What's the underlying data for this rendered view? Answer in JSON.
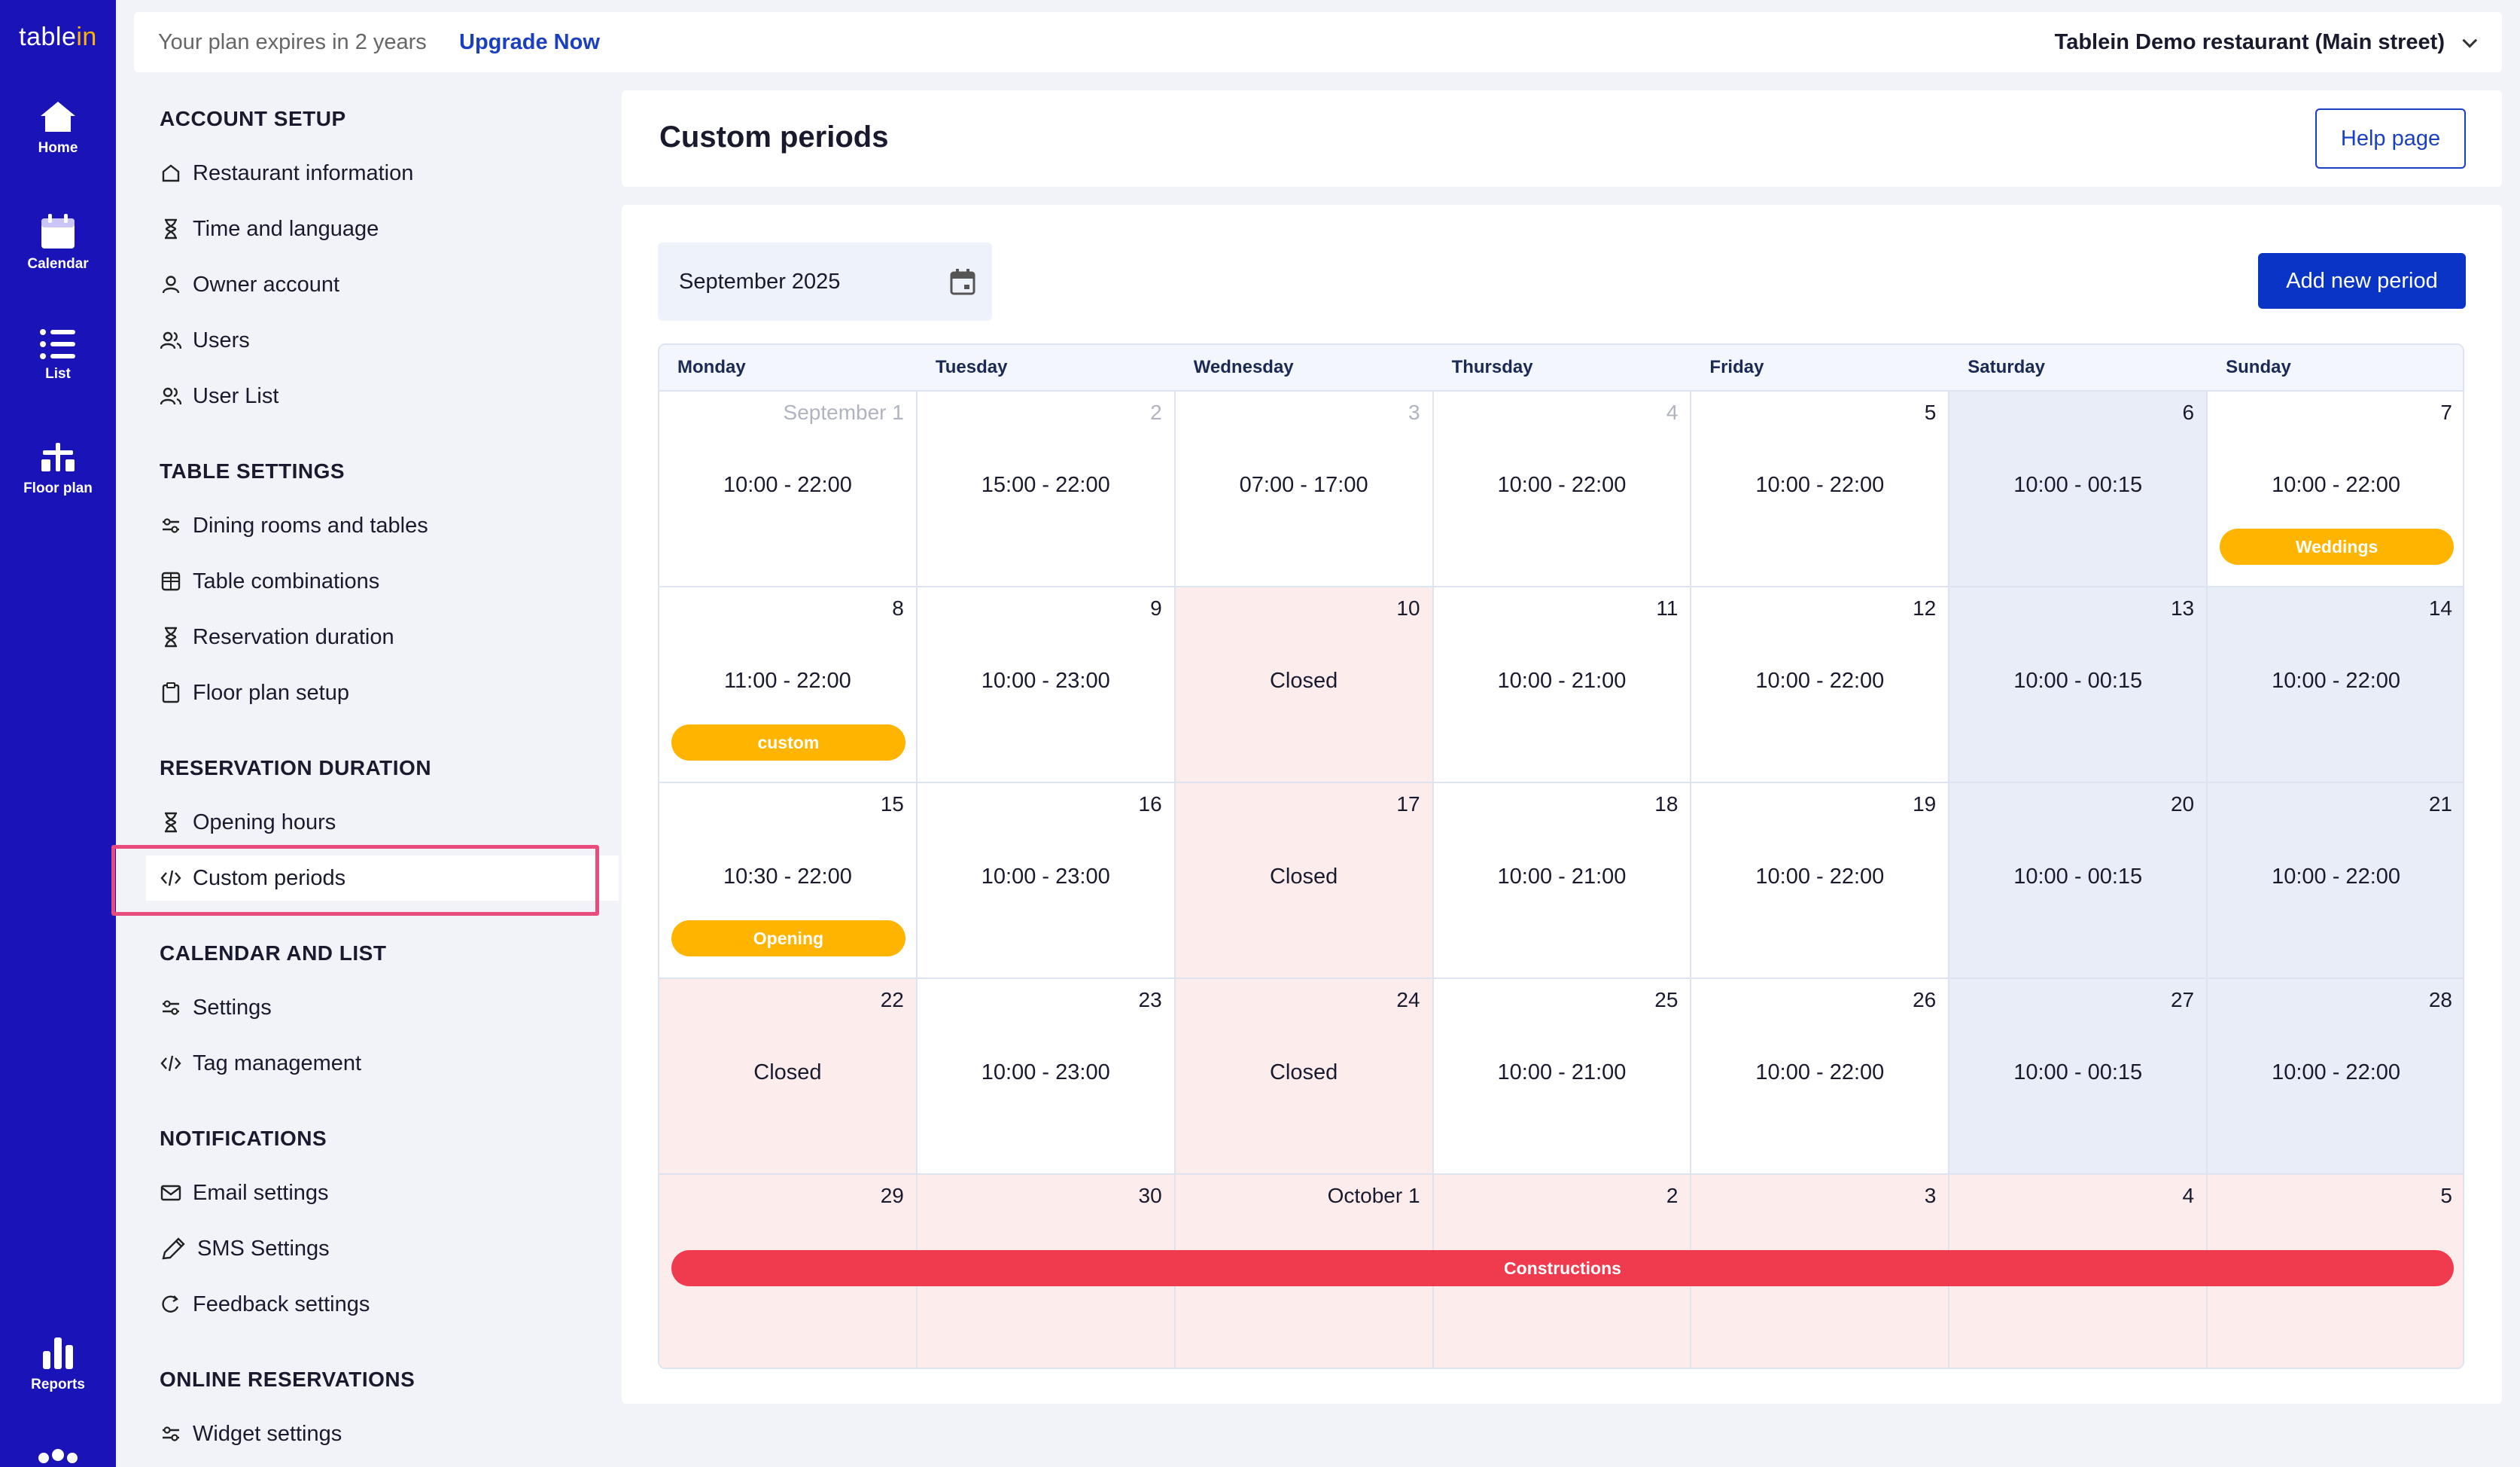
{
  "brand": {
    "logo_main": "table",
    "logo_accent": "in"
  },
  "rail": {
    "items": [
      {
        "label": "Home",
        "icon": "home-icon"
      },
      {
        "label": "Calendar",
        "icon": "calendar-icon"
      },
      {
        "label": "List",
        "icon": "list-icon"
      },
      {
        "label": "Floor plan",
        "icon": "floor-plan-icon"
      },
      {
        "label": "Reports",
        "icon": "bar-chart-icon"
      }
    ]
  },
  "topbar": {
    "plan_text": "Your plan expires in 2 years",
    "upgrade_label": "Upgrade Now",
    "restaurant": "Tablein Demo restaurant (Main street)"
  },
  "settings": {
    "sections": [
      {
        "title": "ACCOUNT SETUP",
        "items": [
          "Restaurant information",
          "Time and language",
          "Owner account",
          "Users",
          "User List"
        ]
      },
      {
        "title": "TABLE SETTINGS",
        "items": [
          "Dining rooms and tables",
          "Table combinations",
          "Reservation duration",
          "Floor plan setup"
        ]
      },
      {
        "title": "RESERVATION DURATION",
        "items": [
          "Opening hours",
          "Custom periods"
        ]
      },
      {
        "title": "CALENDAR AND LIST",
        "items": [
          "Settings",
          "Tag management"
        ]
      },
      {
        "title": "NOTIFICATIONS",
        "items": [
          "Email settings",
          "SMS Settings",
          "Feedback settings"
        ]
      },
      {
        "title": "ONLINE RESERVATIONS",
        "items": [
          "Widget settings"
        ]
      }
    ],
    "active_item": "Custom periods"
  },
  "page": {
    "title": "Custom periods",
    "help_label": "Help page",
    "month_label": "September 2025",
    "add_label": "Add new period"
  },
  "calendar": {
    "weekdays": [
      "Monday",
      "Tuesday",
      "Wednesday",
      "Thursday",
      "Friday",
      "Saturday",
      "Sunday"
    ],
    "weeks": [
      [
        {
          "day": "September 1",
          "muted": true,
          "hours": "10:00 - 22:00",
          "state": "normal"
        },
        {
          "day": "2",
          "muted": true,
          "hours": "15:00 - 22:00",
          "state": "normal"
        },
        {
          "day": "3",
          "muted": true,
          "hours": "07:00 - 17:00",
          "state": "normal"
        },
        {
          "day": "4",
          "muted": true,
          "hours": "10:00 - 22:00",
          "state": "normal"
        },
        {
          "day": "5",
          "muted": false,
          "hours": "10:00 - 22:00",
          "state": "normal"
        },
        {
          "day": "6",
          "muted": false,
          "hours": "10:00 - 00:15",
          "state": "weekend"
        },
        {
          "day": "7",
          "muted": false,
          "hours": "10:00 - 22:00",
          "state": "normal",
          "tag": "Weddings"
        }
      ],
      [
        {
          "day": "8",
          "hours": "11:00 - 22:00",
          "state": "normal",
          "tag": "custom"
        },
        {
          "day": "9",
          "hours": "10:00 - 23:00",
          "state": "normal"
        },
        {
          "day": "10",
          "hours": "Closed",
          "state": "closed"
        },
        {
          "day": "11",
          "hours": "10:00 - 21:00",
          "state": "normal"
        },
        {
          "day": "12",
          "hours": "10:00 - 22:00",
          "state": "normal"
        },
        {
          "day": "13",
          "hours": "10:00 - 00:15",
          "state": "weekend"
        },
        {
          "day": "14",
          "hours": "10:00 - 22:00",
          "state": "weekend"
        }
      ],
      [
        {
          "day": "15",
          "hours": "10:30 - 22:00",
          "state": "normal",
          "tag": "Opening"
        },
        {
          "day": "16",
          "hours": "10:00 - 23:00",
          "state": "normal"
        },
        {
          "day": "17",
          "hours": "Closed",
          "state": "closed"
        },
        {
          "day": "18",
          "hours": "10:00 - 21:00",
          "state": "normal"
        },
        {
          "day": "19",
          "hours": "10:00 - 22:00",
          "state": "normal"
        },
        {
          "day": "20",
          "hours": "10:00 - 00:15",
          "state": "weekend"
        },
        {
          "day": "21",
          "hours": "10:00 - 22:00",
          "state": "weekend"
        }
      ],
      [
        {
          "day": "22",
          "hours": "Closed",
          "state": "closed"
        },
        {
          "day": "23",
          "hours": "10:00 - 23:00",
          "state": "normal"
        },
        {
          "day": "24",
          "hours": "Closed",
          "state": "closed"
        },
        {
          "day": "25",
          "hours": "10:00 - 21:00",
          "state": "normal"
        },
        {
          "day": "26",
          "hours": "10:00 - 22:00",
          "state": "normal"
        },
        {
          "day": "27",
          "hours": "10:00 - 00:15",
          "state": "weekend"
        },
        {
          "day": "28",
          "hours": "10:00 - 22:00",
          "state": "weekend"
        }
      ],
      [
        {
          "day": "29",
          "hours": "",
          "state": "closed"
        },
        {
          "day": "30",
          "hours": "",
          "state": "closed"
        },
        {
          "day": "October 1",
          "hours": "",
          "state": "closed"
        },
        {
          "day": "2",
          "hours": "",
          "state": "closed"
        },
        {
          "day": "3",
          "hours": "",
          "state": "closed"
        },
        {
          "day": "4",
          "hours": "",
          "state": "closed"
        },
        {
          "day": "5",
          "hours": "",
          "state": "closed"
        }
      ]
    ],
    "span_tag": {
      "label": "Constructions",
      "color": "#f03b4e"
    }
  },
  "colors": {
    "rail": "#1a14b8",
    "accent": "#0a34c6",
    "tag_yellow": "#ffb400",
    "tag_red": "#f03b4e",
    "closed_bg": "#fdecec",
    "weekend_bg": "#e9edf8"
  }
}
